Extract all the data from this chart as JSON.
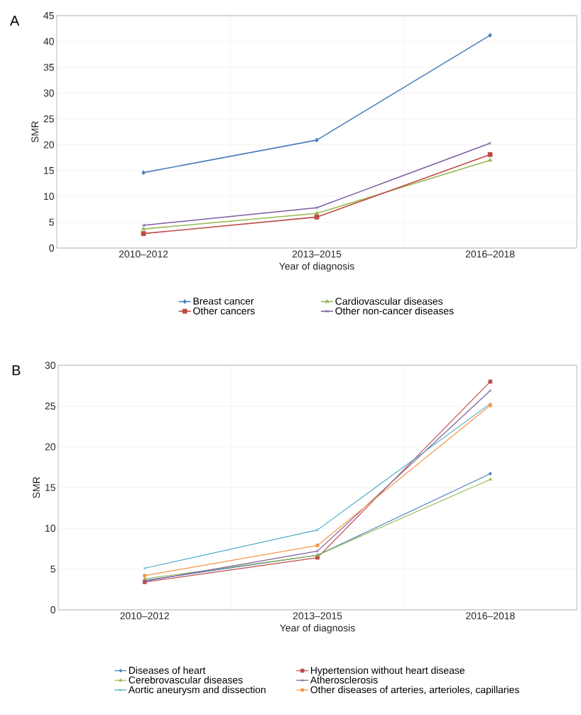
{
  "chart_data": [
    {
      "type": "line",
      "annotations": [
        "A"
      ],
      "xlabel": "Year of diagnosis",
      "ylabel": "SMR",
      "categories": [
        "2010–2012",
        "2013–2015",
        "2016–2018"
      ],
      "ylim": [
        0,
        45
      ],
      "yticks": [
        0,
        5,
        10,
        15,
        20,
        25,
        30,
        35,
        40,
        45
      ],
      "grid": true,
      "legend": "bottom",
      "line_style": "solid",
      "series": [
        {
          "name": "Breast cancer",
          "color": "#4a7ebb",
          "marker": "diamond",
          "values": [
            14.6,
            20.9,
            41.2
          ]
        },
        {
          "name": "Cardiovascular diseases",
          "color": "#98b954",
          "marker": "triangle",
          "values": [
            3.7,
            6.7,
            17.0
          ]
        },
        {
          "name": "Other cancers",
          "color": "#be4b48",
          "marker": "square",
          "values": [
            2.8,
            6.0,
            18.1
          ]
        },
        {
          "name": "Other non-cancer diseases",
          "color": "#7d60a0",
          "marker": "cross",
          "values": [
            4.4,
            7.8,
            20.3
          ]
        }
      ]
    },
    {
      "type": "line",
      "annotations": [
        "B"
      ],
      "xlabel": "Year of diagnosis",
      "ylabel": "SMR",
      "categories": [
        "2010–2012",
        "2013–2015",
        "2016–2018"
      ],
      "ylim": [
        0,
        30
      ],
      "yticks": [
        0,
        5,
        10,
        15,
        20,
        25,
        30
      ],
      "grid": true,
      "legend": "bottom",
      "line_style": "solid",
      "series": [
        {
          "name": "Diseases of heart",
          "color": "#4a7ebb",
          "marker": "diamond",
          "values": [
            3.6,
            6.7,
            16.7
          ]
        },
        {
          "name": "Hypertension without heart disease",
          "color": "#be4b48",
          "marker": "square",
          "values": [
            3.4,
            6.4,
            28.0
          ]
        },
        {
          "name": "Cerebrovascular diseases",
          "color": "#98b954",
          "marker": "triangle",
          "values": [
            3.8,
            6.7,
            16.0
          ]
        },
        {
          "name": "Atherosclerosis",
          "color": "#7d60a0",
          "marker": "cross",
          "values": [
            3.5,
            7.2,
            26.9
          ]
        },
        {
          "name": "Aortic aneurysm and dissection",
          "color": "#4bacc6",
          "marker": "cross",
          "values": [
            5.1,
            9.8,
            25.3
          ]
        },
        {
          "name": "Other diseases of arteries, arterioles, capillaries",
          "color": "#f79646",
          "marker": "circle",
          "values": [
            4.2,
            7.9,
            25.1
          ]
        }
      ]
    }
  ]
}
